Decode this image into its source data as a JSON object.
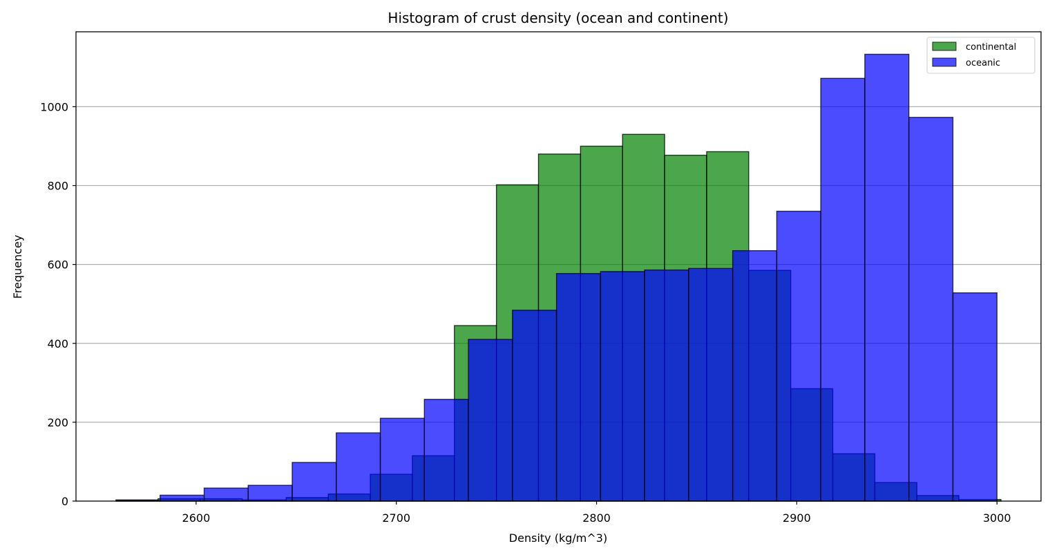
{
  "chart_data": {
    "type": "bar",
    "title": "Histogram of crust density (ocean and continent)",
    "xlabel": "Density (kg/m^3)",
    "ylabel": "Frequencey",
    "xlim": [
      2540,
      3022
    ],
    "ylim": [
      0,
      1190
    ],
    "x_ticks": [
      2600,
      2700,
      2800,
      2900,
      3000
    ],
    "y_ticks": [
      0,
      200,
      400,
      600,
      800,
      1000
    ],
    "grid": "y",
    "legend_position": "top-right",
    "series": [
      {
        "name": "continental",
        "color": "#008000",
        "bin_edges": [
          2560,
          2581,
          2602,
          2623,
          2645,
          2666,
          2687,
          2708,
          2729,
          2750,
          2771,
          2792,
          2813,
          2834,
          2855,
          2876,
          2897,
          2918,
          2939,
          2960,
          2981,
          3002
        ],
        "values": [
          3,
          6,
          6,
          3,
          9,
          18,
          68,
          115,
          445,
          802,
          880,
          900,
          930,
          877,
          886,
          585,
          285,
          120,
          47,
          14,
          4
        ]
      },
      {
        "name": "oceanic",
        "color": "#0000ff",
        "bin_edges": [
          2560,
          2582,
          2604,
          2626,
          2648,
          2670,
          2692,
          2714,
          2736,
          2758,
          2780,
          2802,
          2824,
          2846,
          2868,
          2890,
          2912,
          2934,
          2956,
          2978,
          3000
        ],
        "values": [
          2,
          15,
          33,
          40,
          98,
          173,
          210,
          258,
          410,
          484,
          577,
          582,
          586,
          590,
          635,
          735,
          1072,
          1133,
          973,
          528
        ]
      }
    ]
  }
}
